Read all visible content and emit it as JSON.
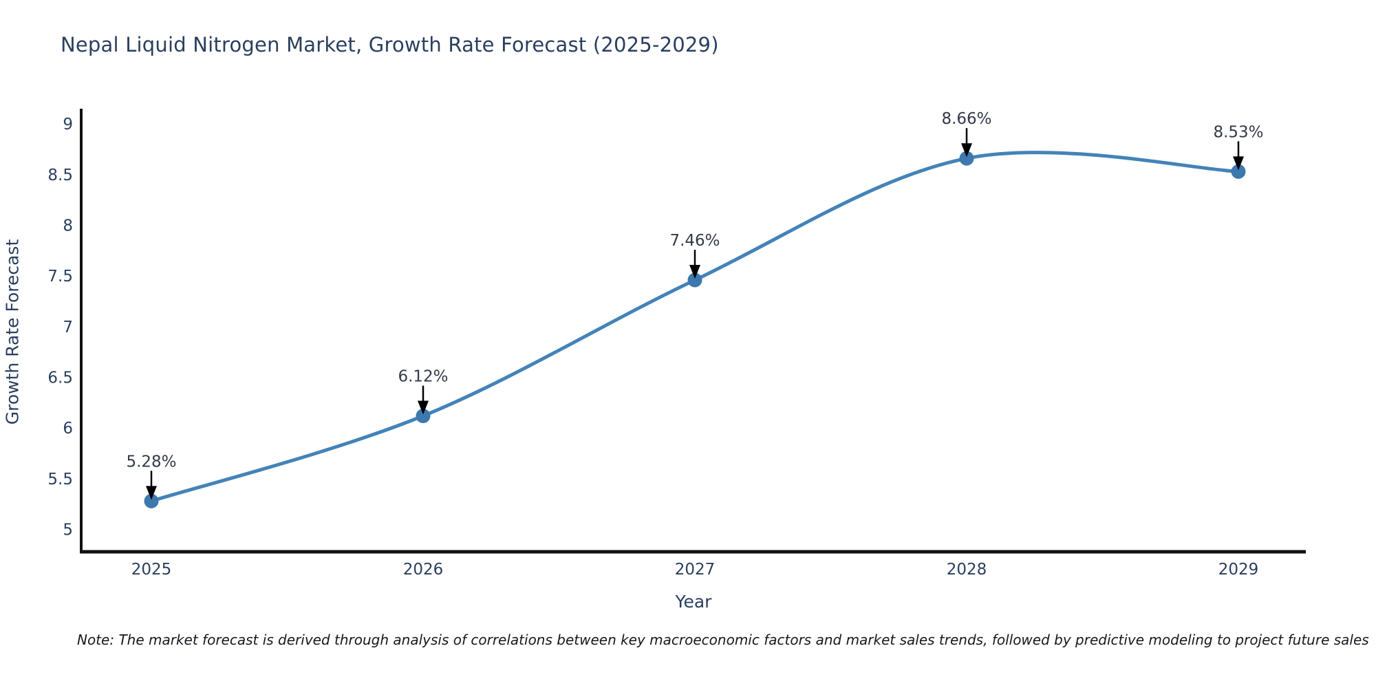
{
  "chart_data": {
    "type": "line",
    "title": "Nepal Liquid Nitrogen Market, Growth Rate Forecast (2025-2029)",
    "xlabel": "Year",
    "ylabel": "Growth Rate Forecast",
    "x": [
      "2025",
      "2026",
      "2027",
      "2028",
      "2029"
    ],
    "values": [
      5.28,
      6.12,
      7.46,
      8.66,
      8.53
    ],
    "point_labels": [
      "5.28%",
      "6.12%",
      "7.46%",
      "8.66%",
      "8.53%"
    ],
    "ytick_values": [
      5,
      5.5,
      6,
      6.5,
      7,
      7.5,
      8,
      8.5,
      9
    ],
    "ytick_labels": [
      "5",
      "5.5",
      "6",
      "6.5",
      "7",
      "7.5",
      "8",
      "8.5",
      "9"
    ],
    "ylim": [
      4.78,
      9.15
    ],
    "grid": false,
    "legend_position": "none",
    "line_color": "#4383b8",
    "marker_color": "#3d78ae",
    "axis_color": "#111111",
    "tick_label_color": "#2a3f5f",
    "annotation_text_color": "#323a47",
    "arrow_color": "#000000",
    "background_color": "#ffffff"
  },
  "note": {
    "text": "Note: The market forecast is derived through analysis of correlations between key macroeconomic factors and market sales trends, followed by predictive modeling to project future sales"
  }
}
